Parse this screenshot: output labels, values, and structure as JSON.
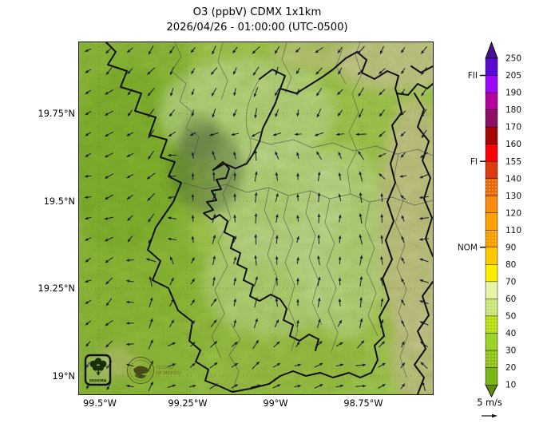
{
  "title": {
    "line1": "O3 (ppbV) CDMX 1x1km",
    "line2": "2026/04/26 - 01:00:00 (UTC-0500)"
  },
  "map": {
    "y_ticks": [
      "19.75°N",
      "19.5°N",
      "19.25°N",
      "19°N"
    ],
    "x_ticks": [
      "99.5°W",
      "99.25°W",
      "99°W",
      "98.75°W"
    ]
  },
  "colorbar": {
    "tick_labels": [
      "250",
      "205",
      "190",
      "180",
      "170",
      "160",
      "155",
      "140",
      "130",
      "120",
      "110",
      "90",
      "80",
      "70",
      "60",
      "50",
      "40",
      "30",
      "20",
      "10"
    ],
    "segments": [
      {
        "range": "205-250",
        "color": "#5a0bd3",
        "speckled": false
      },
      {
        "range": "190-205",
        "color": "#9e07fa",
        "speckled": false
      },
      {
        "range": "180-190",
        "color": "#b4009f",
        "speckled": false
      },
      {
        "range": "170-180",
        "color": "#8d0e66",
        "speckled": false
      },
      {
        "range": "160-170",
        "color": "#a40505",
        "speckled": false
      },
      {
        "range": "155-160",
        "color": "#fb0007",
        "speckled": false
      },
      {
        "range": "140-155",
        "color": "#dc3b12",
        "speckled": false
      },
      {
        "range": "130-140",
        "color": "#ef680e",
        "speckled": true
      },
      {
        "range": "120-130",
        "color": "#fd8b0e",
        "speckled": false
      },
      {
        "range": "110-120",
        "color": "#fea103",
        "speckled": false
      },
      {
        "range": "90-110",
        "color": "#fe9d00",
        "speckled": true
      },
      {
        "range": "80-90",
        "color": "#fdc800",
        "speckled": false
      },
      {
        "range": "70-80",
        "color": "#fcee00",
        "speckled": false
      },
      {
        "range": "60-70",
        "color": "#e7f3a6",
        "speckled": false
      },
      {
        "range": "50-60",
        "color": "#c8e881",
        "speckled": true
      },
      {
        "range": "40-50",
        "color": "#b5de14",
        "speckled": true
      },
      {
        "range": "30-40",
        "color": "#9cd32b",
        "speckled": false
      },
      {
        "range": "20-30",
        "color": "#8cc31d",
        "speckled": true
      },
      {
        "range": "10-20",
        "color": "#7ab511",
        "speckled": false
      }
    ],
    "thresholds": [
      {
        "label": "FII",
        "at": "205"
      },
      {
        "label": "FI",
        "at": "155"
      },
      {
        "label": "NOM",
        "at": "90"
      }
    ],
    "over_arrow_color": "#451291",
    "under_arrow_color": "#5e8c07"
  },
  "wind_legend": {
    "label": "5 m/s"
  },
  "logos": {
    "sedema": "SEDEMA",
    "cdmx_line1": "CIUDAD",
    "cdmx_line2": "DE MÉXICO"
  },
  "wind_field": {
    "arrow_color": "#1c2030",
    "angles_deg": [
      [
        215,
        222,
        230,
        238,
        232,
        228,
        224,
        230,
        236,
        242
      ],
      [
        218,
        226,
        236,
        246,
        242,
        248,
        238,
        232,
        228,
        236
      ],
      [
        205,
        218,
        238,
        252,
        262,
        256,
        246,
        238,
        232,
        228
      ],
      [
        195,
        206,
        228,
        78,
        86,
        90,
        92,
        94,
        230,
        222
      ],
      [
        190,
        200,
        242,
        76,
        84,
        88,
        90,
        92,
        100,
        212
      ],
      [
        198,
        212,
        248,
        70,
        80,
        88,
        86,
        90,
        94,
        202
      ],
      [
        208,
        222,
        62,
        66,
        78,
        88,
        90,
        86,
        94,
        192
      ],
      [
        218,
        228,
        48,
        56,
        74,
        84,
        88,
        82,
        90,
        182
      ],
      [
        228,
        238,
        25,
        32,
        45,
        35,
        22,
        18,
        32,
        155
      ],
      [
        235,
        245,
        12,
        20,
        26,
        16,
        10,
        6,
        22,
        142
      ]
    ]
  }
}
